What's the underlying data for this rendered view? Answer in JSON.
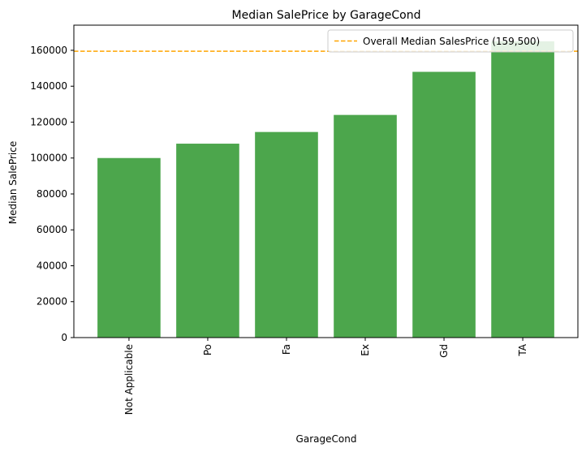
{
  "chart_data": {
    "type": "bar",
    "title": "Median SalePrice by GarageCond",
    "xlabel": "GarageCond",
    "ylabel": "Median SalePrice",
    "categories": [
      "Not Applicable",
      "Po",
      "Fa",
      "Ex",
      "Gd",
      "TA"
    ],
    "values": [
      100000,
      108000,
      114500,
      124000,
      148000,
      165000
    ],
    "ylim": [
      0,
      174000
    ],
    "yticks": [
      0,
      20000,
      40000,
      60000,
      80000,
      100000,
      120000,
      140000,
      160000
    ],
    "ytick_labels": [
      "0",
      "20000",
      "40000",
      "60000",
      "80000",
      "100000",
      "120000",
      "140000",
      "160000"
    ],
    "bar_color": "#4ca64c",
    "reference_line": {
      "value": 159500,
      "label": "Overall Median SalesPrice (159,500)",
      "color": "#ffa500",
      "style": "dashed"
    },
    "legend_position": "top-right",
    "grid": false
  }
}
